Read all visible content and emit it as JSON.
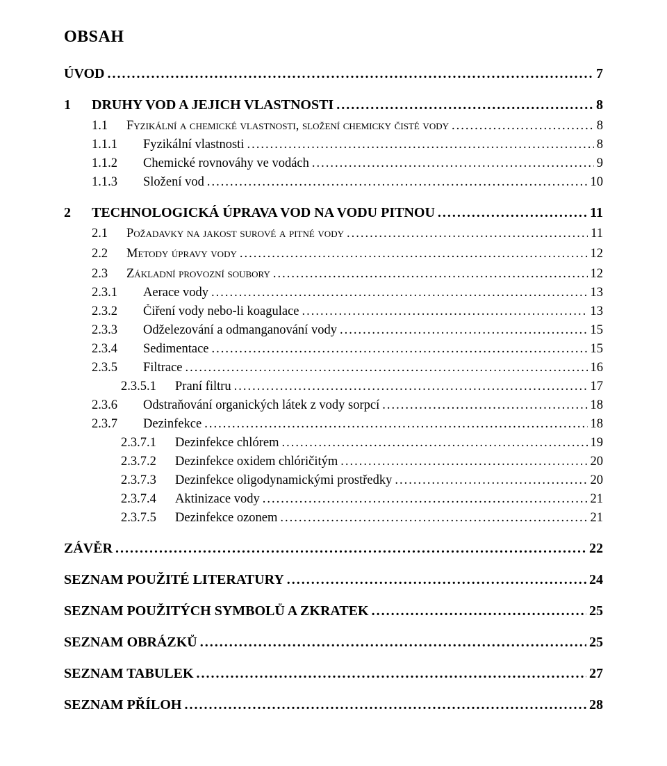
{
  "title": "OBSAH",
  "entries": [
    {
      "level": "lvl0",
      "num": "",
      "text": "ÚVOD",
      "page": "7"
    },
    {
      "level": "lvl0",
      "num": "1",
      "text": "DRUHY VOD A JEJICH VLASTNOSTI",
      "page": "8"
    },
    {
      "level": "lvl1",
      "num": "1.1",
      "sc": true,
      "text": "Fyzikální a chemické vlastnosti, složení chemicky čisté vody",
      "page": "8"
    },
    {
      "level": "lvl2",
      "num": "1.1.1",
      "text": "Fyzikální vlastnosti",
      "page": "8"
    },
    {
      "level": "lvl2",
      "num": "1.1.2",
      "text": "Chemické rovnováhy ve vodách",
      "page": "9"
    },
    {
      "level": "lvl2",
      "num": "1.1.3",
      "text": "Složení vod",
      "page": "10"
    },
    {
      "level": "lvl0",
      "num": "2",
      "text": "TECHNOLOGICKÁ ÚPRAVA VOD NA VODU PITNOU",
      "page": "11"
    },
    {
      "level": "lvl1",
      "num": "2.1",
      "sc": true,
      "text": "Požadavky na jakost surové a pitné vody",
      "page": "11"
    },
    {
      "level": "lvl1",
      "num": "2.2",
      "sc": true,
      "text": "Metody úpravy vody",
      "page": "12"
    },
    {
      "level": "lvl1",
      "num": "2.3",
      "sc": true,
      "text": "Základní provozní soubory",
      "page": "12"
    },
    {
      "level": "lvl2",
      "num": "2.3.1",
      "text": "Aerace vody",
      "page": "13"
    },
    {
      "level": "lvl2",
      "num": "2.3.2",
      "text": "Čiření vody nebo-li koagulace",
      "page": "13"
    },
    {
      "level": "lvl2",
      "num": "2.3.3",
      "text": "Odželezování a odmanganování vody",
      "page": "15"
    },
    {
      "level": "lvl2",
      "num": "2.3.4",
      "text": "Sedimentace",
      "page": "15"
    },
    {
      "level": "lvl2",
      "num": "2.3.5",
      "text": "Filtrace",
      "page": "16"
    },
    {
      "level": "lvl3",
      "num": "2.3.5.1",
      "text": "Praní filtru",
      "page": "17"
    },
    {
      "level": "lvl2",
      "num": "2.3.6",
      "text": "Odstraňování organických látek z vody sorpcí",
      "page": "18"
    },
    {
      "level": "lvl2",
      "num": "2.3.7",
      "text": "Dezinfekce",
      "page": "18"
    },
    {
      "level": "lvl3",
      "num": "2.3.7.1",
      "text": "Dezinfekce chlórem",
      "page": "19"
    },
    {
      "level": "lvl3",
      "num": "2.3.7.2",
      "text": "Dezinfekce oxidem chlóričitým",
      "page": "20"
    },
    {
      "level": "lvl3",
      "num": "2.3.7.3",
      "text": "Dezinfekce oligodynamickými prostředky",
      "page": "20"
    },
    {
      "level": "lvl3",
      "num": "2.3.7.4",
      "text": "Aktinizace vody",
      "page": "21"
    },
    {
      "level": "lvl3",
      "num": "2.3.7.5",
      "text": "Dezinfekce ozonem",
      "page": "21"
    },
    {
      "level": "lvl0b",
      "num": "",
      "text": "ZÁVĚR",
      "page": "22"
    },
    {
      "level": "lvl0b",
      "num": "",
      "text": "SEZNAM POUŽITÉ LITERATURY",
      "page": "24"
    },
    {
      "level": "lvl0b",
      "num": "",
      "text": "SEZNAM POUŽITÝCH SYMBOLŮ A ZKRATEK",
      "page": "25"
    },
    {
      "level": "lvl0b",
      "num": "",
      "text": "SEZNAM OBRÁZKŮ",
      "page": "25"
    },
    {
      "level": "lvl0b",
      "num": "",
      "text": "SEZNAM TABULEK",
      "page": "27"
    },
    {
      "level": "lvl0b",
      "num": "",
      "text": "SEZNAM PŘÍLOH",
      "page": "28"
    }
  ],
  "colors": {
    "text": "#000000",
    "background": "#ffffff"
  },
  "fonts": {
    "family": "Times New Roman",
    "title_size_pt": 18,
    "lvl0_size_pt": 15,
    "body_size_pt": 14
  }
}
